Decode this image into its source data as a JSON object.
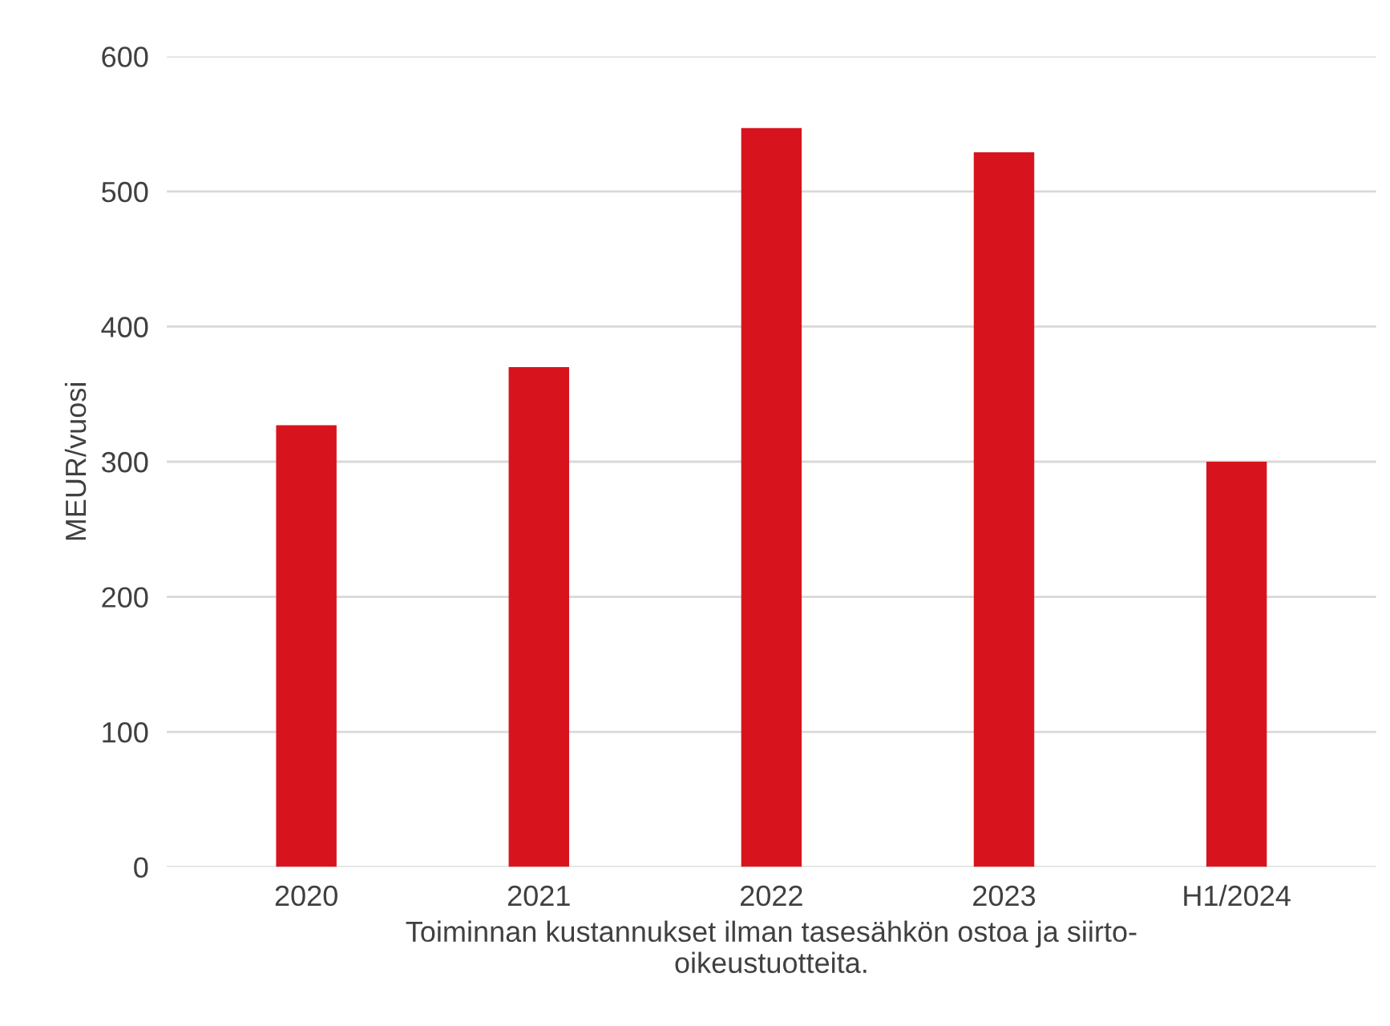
{
  "chart_data": {
    "type": "bar",
    "ylabel": "MEUR/vuosi",
    "xlabel": "Toiminnan kustannukset ilman tasesähkön ostoa ja siirto-\noikeustuotteita.",
    "categories": [
      "2020",
      "2021",
      "2022",
      "2023",
      "H1/2024"
    ],
    "values": [
      327,
      370,
      547,
      529,
      300
    ],
    "color": "#d7141e",
    "ylim": [
      0,
      600
    ],
    "yticks": [
      0,
      100,
      200,
      300,
      400,
      500,
      600
    ],
    "grid": "y"
  }
}
